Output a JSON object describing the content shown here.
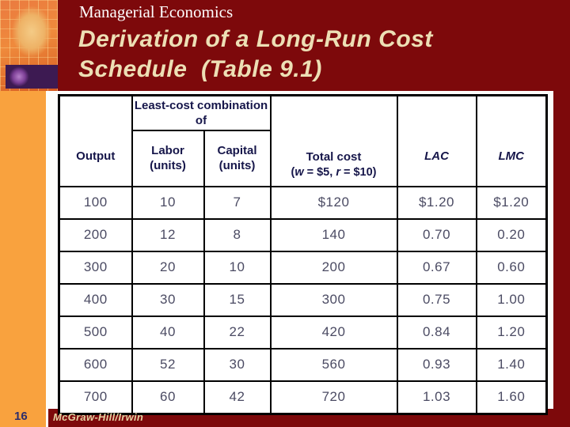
{
  "slide": {
    "kicker": "Managerial Economics",
    "title_line1": "Derivation of a Long-Run Cost",
    "title_line2": "Schedule  (Table 9.1)",
    "page_number": "16",
    "footer": "McGraw-Hill/Irwin"
  },
  "colors": {
    "band_maroon": "#7D090B",
    "sidebar_orange": "#F9A23E",
    "title_cream": "#EDDFB5",
    "table_header_navy": "#16164A",
    "table_data_gray": "#4B4B63"
  },
  "icons": {
    "corner_collage": "coin-and-grid-collage",
    "corner_spheres": "purple-and-olive-spheres"
  },
  "table": {
    "header": {
      "output": "Output",
      "least_cost_group": "Least-cost combination of",
      "labor_line1": "Labor",
      "labor_line2": "(units)",
      "capital_line1": "Capital",
      "capital_line2": "(units)",
      "total_cost": "Total cost",
      "total_cost_sub": {
        "pre": "(",
        "w": "w",
        "mid": " = $5, ",
        "r": "r",
        "post": " = $10)"
      },
      "lac": "LAC",
      "lmc": "LMC"
    },
    "rows": [
      [
        "100",
        "10",
        "7",
        "$120",
        "$1.20",
        "$1.20"
      ],
      [
        "200",
        "12",
        "8",
        "140",
        "0.70",
        "0.20"
      ],
      [
        "300",
        "20",
        "10",
        "200",
        "0.67",
        "0.60"
      ],
      [
        "400",
        "30",
        "15",
        "300",
        "0.75",
        "1.00"
      ],
      [
        "500",
        "40",
        "22",
        "420",
        "0.84",
        "1.20"
      ],
      [
        "600",
        "52",
        "30",
        "560",
        "0.93",
        "1.40"
      ],
      [
        "700",
        "60",
        "42",
        "720",
        "1.03",
        "1.60"
      ]
    ]
  },
  "chart_data": {
    "type": "table",
    "title": "Derivation of a Long-Run Cost Schedule (Table 9.1)",
    "columns": [
      "Output",
      "Labor (units)",
      "Capital (units)",
      "Total cost (w = $5, r = $10)",
      "LAC",
      "LMC"
    ],
    "rows": [
      [
        100,
        10,
        7,
        120,
        1.2,
        1.2
      ],
      [
        200,
        12,
        8,
        140,
        0.7,
        0.2
      ],
      [
        300,
        20,
        10,
        200,
        0.67,
        0.6
      ],
      [
        400,
        30,
        15,
        300,
        0.75,
        1.0
      ],
      [
        500,
        40,
        22,
        420,
        0.84,
        1.2
      ],
      [
        600,
        52,
        30,
        560,
        0.93,
        1.4
      ],
      [
        700,
        60,
        42,
        720,
        1.03,
        1.6
      ]
    ]
  }
}
